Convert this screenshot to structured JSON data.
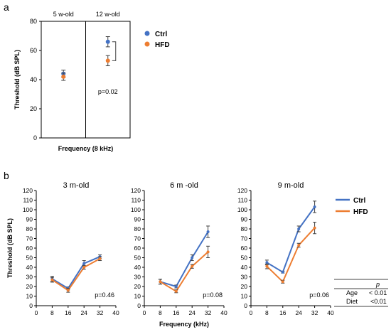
{
  "panel_labels": {
    "a": "a",
    "b": "b"
  },
  "colors": {
    "ctrl": "#4472C4",
    "hfd": "#ED7D31",
    "axis": "#000000",
    "error": "#404040"
  },
  "legend": {
    "ctrl": "Ctrl",
    "hfd": "HFD"
  },
  "chart_data": [
    {
      "id": "a",
      "type": "scatter",
      "ylabel": "Threshold (dB SPL)",
      "xlabel": "Frequency (8 kHz)",
      "ylim": [
        0,
        80
      ],
      "yticks": [
        "0",
        "20",
        "40",
        "60",
        "80"
      ],
      "group_labels": [
        "5 w-old",
        "12 w-old"
      ],
      "series": [
        {
          "name": "Ctrl",
          "values": [
            44,
            66
          ],
          "err": [
            2.5,
            3.5
          ]
        },
        {
          "name": "HFD",
          "values": [
            42,
            53
          ],
          "err": [
            2.5,
            3.5
          ]
        }
      ],
      "annotation": "p=0.02"
    },
    {
      "id": "b1",
      "type": "line",
      "title": "3 m-old",
      "ylabel": "Threshold (dB SPL)",
      "x": [
        8,
        16,
        24,
        32
      ],
      "xlim": [
        0,
        40
      ],
      "xticks": [
        "0",
        "8",
        "16",
        "24",
        "32",
        "40"
      ],
      "ylim": [
        0,
        120
      ],
      "yticks": [
        "0",
        "10",
        "20",
        "30",
        "40",
        "50",
        "60",
        "70",
        "80",
        "90",
        "100",
        "110",
        "120"
      ],
      "series": [
        {
          "name": "Ctrl",
          "values": [
            28,
            18,
            44,
            51
          ],
          "err": [
            2.5,
            1.5,
            3,
            2
          ]
        },
        {
          "name": "HFD",
          "values": [
            27,
            16,
            40,
            49
          ],
          "err": [
            2.5,
            2,
            2,
            2
          ]
        }
      ],
      "annotation": "p=0.46"
    },
    {
      "id": "b2",
      "type": "line",
      "title": "6 m -old",
      "xlabel": "Frequency (kHz)",
      "x": [
        8,
        16,
        24,
        32
      ],
      "xlim": [
        0,
        40
      ],
      "xticks": [
        "0",
        "8",
        "16",
        "24",
        "32",
        "40"
      ],
      "ylim": [
        0,
        120
      ],
      "yticks": [
        "0",
        "10",
        "20",
        "30",
        "40",
        "50",
        "60",
        "70",
        "80",
        "90",
        "100",
        "110",
        "120"
      ],
      "series": [
        {
          "name": "Ctrl",
          "values": [
            25,
            20,
            50,
            77
          ],
          "err": [
            2.5,
            1.5,
            3,
            6
          ]
        },
        {
          "name": "HFD",
          "values": [
            25,
            15,
            41,
            56
          ],
          "err": [
            2.5,
            1.5,
            2,
            6
          ]
        }
      ],
      "annotation": "p=0.08"
    },
    {
      "id": "b3",
      "type": "line",
      "title": "9 m-old",
      "x": [
        8,
        16,
        24,
        32
      ],
      "xlim": [
        0,
        40
      ],
      "xticks": [
        "0",
        "8",
        "16",
        "24",
        "32",
        "40"
      ],
      "ylim": [
        0,
        120
      ],
      "yticks": [
        "0",
        "10",
        "20",
        "30",
        "40",
        "50",
        "60",
        "70",
        "80",
        "90",
        "100",
        "110",
        "120"
      ],
      "series": [
        {
          "name": "Ctrl",
          "values": [
            45,
            35,
            80,
            103
          ],
          "err": [
            2.5,
            1,
            3,
            6
          ]
        },
        {
          "name": "HFD",
          "values": [
            41,
            25,
            63,
            81
          ],
          "err": [
            2.5,
            1.5,
            2,
            6
          ]
        }
      ],
      "annotation": "p=0.06"
    }
  ],
  "stats_table": {
    "header": "p",
    "rows": [
      {
        "factor": "Age",
        "value": "< 0.01"
      },
      {
        "factor": "Diet",
        "value": "<0.01"
      }
    ]
  }
}
